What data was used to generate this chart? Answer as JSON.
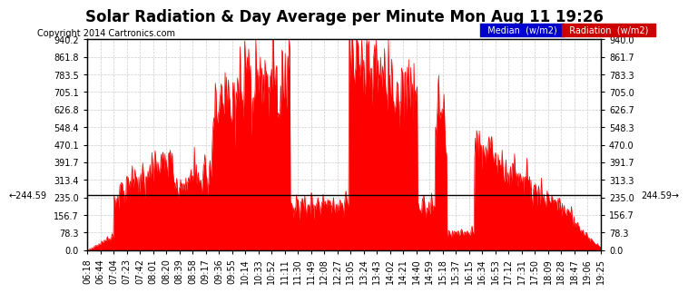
{
  "title": "Solar Radiation & Day Average per Minute Mon Aug 11 19:26",
  "copyright": "Copyright 2014 Cartronics.com",
  "legend_median_label": "Median  (w/m2)",
  "legend_radiation_label": "Radiation  (w/m2)",
  "median_value": 244.59,
  "y_tick_labels": [
    "0.0",
    "78.3",
    "156.7",
    "235.0",
    "313.4",
    "391.7",
    "470.1",
    "548.4",
    "626.8",
    "705.1",
    "783.5",
    "861.8",
    "940.2"
  ],
  "y_tick_values": [
    0.0,
    78.3,
    156.7,
    235.0,
    313.4,
    391.7,
    470.1,
    548.4,
    626.8,
    705.1,
    783.5,
    861.8,
    940.2
  ],
  "ytick_right_labels": [
    "940.0",
    "861.7",
    "783.3",
    "705.0",
    "626.7",
    "548.3",
    "470.0",
    "391.7",
    "313.3",
    "235.0",
    "156.7",
    "78.3",
    "0.0"
  ],
  "ytick_right_values": [
    940.0,
    861.7,
    783.3,
    705.0,
    626.7,
    548.3,
    470.0,
    391.7,
    313.3,
    235.0,
    156.7,
    78.3,
    0.0
  ],
  "x_labels": [
    "06:18",
    "06:44",
    "07:04",
    "07:23",
    "07:42",
    "08:01",
    "08:20",
    "08:39",
    "08:58",
    "09:17",
    "09:36",
    "09:55",
    "10:14",
    "10:33",
    "10:52",
    "11:11",
    "11:30",
    "11:49",
    "12:08",
    "12:27",
    "13:05",
    "13:24",
    "13:43",
    "14:02",
    "14:21",
    "14:40",
    "14:59",
    "15:18",
    "15:37",
    "16:15",
    "16:34",
    "16:53",
    "17:12",
    "17:31",
    "17:50",
    "18:09",
    "18:28",
    "18:47",
    "19:06",
    "19:25"
  ],
  "background_color": "#ffffff",
  "plot_bg_color": "#ffffff",
  "grid_color": "#cccccc",
  "radiation_fill_color": "#ff0000",
  "radiation_line_color": "#ff0000",
  "median_line_color": "#000000",
  "title_color": "#000000",
  "copyright_color": "#000000",
  "legend_median_bg": "#0000cc",
  "legend_radiation_bg": "#cc0000",
  "legend_text_color": "#ffffff",
  "ymin": 0.0,
  "ymax": 940.0
}
